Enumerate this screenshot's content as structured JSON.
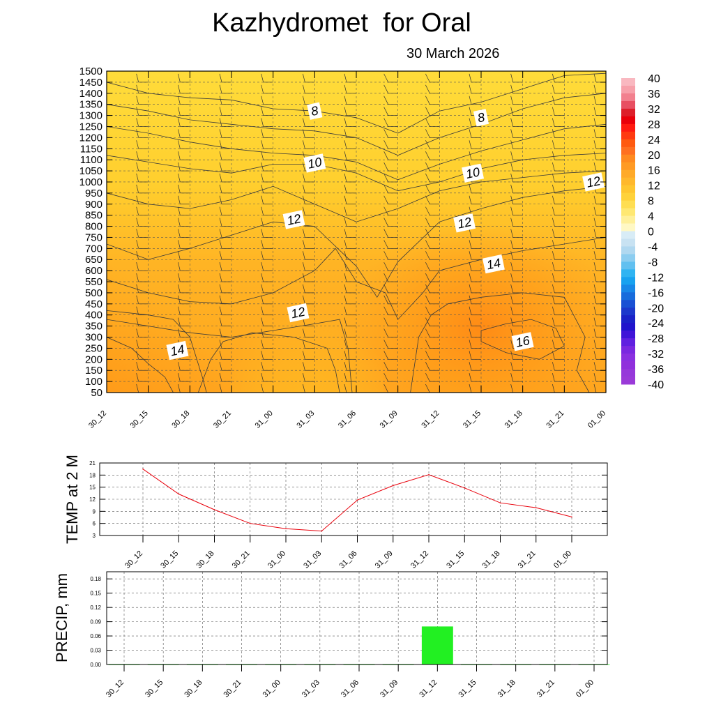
{
  "title": "Kazhydromet  for Oral",
  "date": "30 March 2026",
  "colors": {
    "temp_line": "#e8000b",
    "precip_bar": "#22f022",
    "contour": "#3a3a3a",
    "grid": "#555555"
  },
  "chart_data": [
    {
      "type": "heatmap",
      "title": "Kazhydromet  for Oral",
      "subtitle": "30 March 2026",
      "categories": [
        "30_12",
        "30_15",
        "30_18",
        "30_21",
        "31_00",
        "31_03",
        "31_06",
        "31_09",
        "31_12",
        "31_15",
        "31_18",
        "31_21",
        "01_00"
      ],
      "y_ticks": [
        50,
        100,
        150,
        200,
        250,
        300,
        350,
        400,
        450,
        500,
        550,
        600,
        650,
        700,
        750,
        800,
        850,
        900,
        950,
        1000,
        1050,
        1100,
        1150,
        1200,
        1250,
        1300,
        1350,
        1400,
        1450,
        1500
      ],
      "ylim": [
        50,
        1500
      ],
      "contour_labels": [
        {
          "text": "8",
          "x": 5.0,
          "y": 1320
        },
        {
          "text": "8",
          "x": 9.0,
          "y": 1290
        },
        {
          "text": "10",
          "x": 5.0,
          "y": 1085
        },
        {
          "text": "10",
          "x": 8.8,
          "y": 1040
        },
        {
          "text": "12",
          "x": 11.7,
          "y": 1000
        },
        {
          "text": "12",
          "x": 4.5,
          "y": 830
        },
        {
          "text": "12",
          "x": 8.6,
          "y": 815
        },
        {
          "text": "14",
          "x": 9.3,
          "y": 630
        },
        {
          "text": "12",
          "x": 4.6,
          "y": 410
        },
        {
          "text": "16",
          "x": 10.0,
          "y": 280
        },
        {
          "text": "14",
          "x": 1.7,
          "y": 240
        }
      ],
      "colorbar": {
        "ticks": [
          "40",
          "36",
          "32",
          "28",
          "24",
          "20",
          "16",
          "12",
          "8",
          "4",
          "0",
          "-4",
          "-8",
          "-12",
          "-16",
          "-20",
          "-24",
          "-28",
          "-32",
          "-36",
          "-40"
        ],
        "range": [
          -40,
          40
        ]
      }
    },
    {
      "type": "line",
      "ylabel": "TEMP at 2 M",
      "categories": [
        "30_12",
        "30_15",
        "30_18",
        "30_21",
        "31_00",
        "31_03",
        "31_06",
        "31_09",
        "31_12",
        "31_15",
        "31_18",
        "31_21",
        "01_00"
      ],
      "values": [
        19.5,
        13.3,
        9.4,
        6.0,
        4.7,
        4.1,
        11.8,
        15.4,
        18.1,
        14.8,
        11.1,
        9.9,
        7.6
      ],
      "y_ticks": [
        "3",
        "6",
        "9",
        "12",
        "15",
        "18",
        "21"
      ],
      "ylim": [
        3,
        21
      ]
    },
    {
      "type": "bar",
      "ylabel": "PRECIP, mm",
      "categories": [
        "30_12",
        "30_15",
        "30_18",
        "30_21",
        "31_00",
        "31_03",
        "31_06",
        "31_09",
        "31_12",
        "31_15",
        "31_18",
        "31_21",
        "01_00"
      ],
      "values": [
        0,
        0,
        0,
        0,
        0,
        0,
        0,
        0,
        0.08,
        0,
        0,
        0,
        0
      ],
      "y_ticks": [
        "0.00",
        "0.03",
        "0.06",
        "0.09",
        "0.12",
        "0.15",
        "0.18"
      ],
      "ylim": [
        0,
        0.195
      ]
    }
  ]
}
